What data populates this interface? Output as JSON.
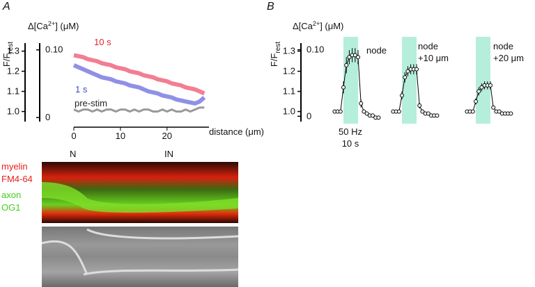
{
  "panels": [
    "A",
    "B"
  ],
  "chart_data": [
    {
      "type": "line",
      "ylabel": "F/F",
      "ylabel_sub": "rest",
      "y2label": [
        "Δ[Ca",
        "2+",
        "] (μM)"
      ],
      "xlabel": "distance (μm)",
      "xlim": [
        0,
        29
      ],
      "xticks": [
        0,
        10,
        20
      ],
      "ylim": [
        0.95,
        1.34
      ],
      "yticks": [
        {
          "value": 1,
          "label": "1.0"
        },
        1.1,
        1.2,
        1.3
      ],
      "y2lim": [
        -0.006,
        0.11
      ],
      "y2ticks": [
        0,
        {
          "value": 0.1,
          "label": "0.10"
        }
      ],
      "x": [
        0,
        1,
        2,
        3,
        4,
        5,
        6,
        7,
        8,
        9,
        10,
        11,
        12,
        13,
        14,
        15,
        16,
        17,
        18,
        19,
        20,
        21,
        22,
        23,
        24,
        25,
        26,
        27,
        28
      ],
      "series": [
        {
          "name": "10 s",
          "color": "#f27e93",
          "values": [
            1.28,
            1.275,
            1.27,
            1.26,
            1.255,
            1.25,
            1.24,
            1.235,
            1.23,
            1.22,
            1.215,
            1.21,
            1.2,
            1.195,
            1.19,
            1.18,
            1.175,
            1.17,
            1.16,
            1.155,
            1.15,
            1.14,
            1.135,
            1.13,
            1.12,
            1.115,
            1.11,
            1.1,
            1.09
          ]
        },
        {
          "name": "1 s",
          "color": "#8f90e6",
          "values": [
            1.23,
            1.22,
            1.21,
            1.2,
            1.19,
            1.18,
            1.17,
            1.165,
            1.16,
            1.15,
            1.145,
            1.14,
            1.13,
            1.125,
            1.12,
            1.11,
            1.1,
            1.095,
            1.09,
            1.08,
            1.075,
            1.07,
            1.06,
            1.055,
            1.05,
            1.045,
            1.04,
            1.05,
            1.07
          ]
        },
        {
          "name": "pre-stim",
          "color": "#999999",
          "values": [
            1.01,
            1.0,
            1.01,
            1.01,
            1.0,
            1.01,
            1.0,
            1.01,
            1.01,
            1.0,
            1.01,
            1.01,
            1.0,
            1.01,
            1.0,
            1.01,
            1.01,
            1.0,
            1.0,
            1.01,
            1.0,
            1.01,
            1.0,
            1.0,
            1.01,
            1.0,
            1.01,
            1.02,
            1.02
          ]
        }
      ]
    },
    {
      "type": "line",
      "ylabel": "F/F",
      "ylabel_sub": "rest",
      "y2label": [
        "Δ[Ca",
        "2+",
        "] (μM)"
      ],
      "ylim": [
        0.95,
        1.34
      ],
      "yticks": [
        {
          "value": 1,
          "label": "1.0"
        },
        1.1,
        1.2,
        1.3
      ],
      "y2lim": [
        -0.008,
        0.11
      ],
      "y2ticks": [
        0,
        {
          "value": 0.1,
          "label": "0.10"
        }
      ],
      "stimulus": [
        0,
        10
      ],
      "stimulus_color": "#b6eedc",
      "stimulus_label": [
        "50 Hz",
        "10 s"
      ],
      "x": [
        -6,
        -4,
        -2,
        0,
        2,
        4,
        6,
        8,
        10,
        12,
        14,
        16,
        18,
        20,
        22,
        24
      ],
      "series": [
        {
          "name": "node",
          "color": "#000000",
          "values": [
            1.0,
            1.0,
            1.0,
            1.12,
            1.23,
            1.27,
            1.28,
            1.28,
            1.27,
            1.04,
            1.0,
            0.99,
            0.98,
            0.98,
            0.97,
            0.97
          ],
          "errors": [
            0.005,
            0.005,
            0.005,
            0.03,
            0.04,
            0.035,
            0.035,
            0.035,
            0.035,
            0.02,
            0.01,
            0.005,
            0.005,
            0.005,
            0.005,
            0.005
          ]
        },
        {
          "name": "node +10 μm",
          "color": "#000000",
          "values": [
            1.0,
            1.0,
            1.0,
            1.08,
            1.17,
            1.2,
            1.21,
            1.21,
            1.21,
            1.03,
            1.0,
            0.99,
            0.99,
            0.98,
            0.98,
            0.98
          ],
          "errors": [
            0.005,
            0.005,
            0.005,
            0.02,
            0.025,
            0.025,
            0.025,
            0.025,
            0.025,
            0.015,
            0.008,
            0.005,
            0.005,
            0.005,
            0.005,
            0.005
          ]
        },
        {
          "name": "node +20 μm",
          "color": "#000000",
          "values": [
            1.0,
            1.0,
            1.0,
            1.05,
            1.1,
            1.12,
            1.13,
            1.13,
            1.13,
            1.02,
            1.0,
            1.0,
            0.99,
            0.99,
            0.99,
            0.99
          ],
          "errors": [
            0.005,
            0.005,
            0.005,
            0.015,
            0.02,
            0.02,
            0.02,
            0.02,
            0.02,
            0.01,
            0.005,
            0.005,
            0.005,
            0.005,
            0.005,
            0.005
          ]
        }
      ]
    }
  ],
  "image": {
    "markers": [
      "N",
      "IN"
    ],
    "channels": [
      {
        "name": "myelin",
        "dye": "FM4-64",
        "color": "#e8201a"
      },
      {
        "name": "axon",
        "dye": "OG1",
        "color": "#3fd11c"
      }
    ]
  }
}
